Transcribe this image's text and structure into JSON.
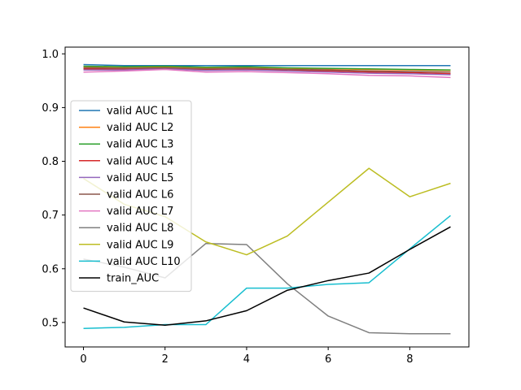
{
  "chart_data": {
    "type": "line",
    "title": "",
    "xlabel": "",
    "ylabel": "",
    "xlim": [
      -0.45,
      9.45
    ],
    "ylim": [
      0.4545,
      1.0125
    ],
    "x": [
      0,
      1,
      2,
      3,
      4,
      5,
      6,
      7,
      8,
      9
    ],
    "x_ticks": [
      0,
      2,
      4,
      6,
      8
    ],
    "y_ticks": [
      0.5,
      0.6,
      0.7,
      0.8,
      0.9,
      1.0
    ],
    "x_tick_labels": [
      "0",
      "2",
      "4",
      "6",
      "8"
    ],
    "y_tick_labels": [
      "0.5",
      "0.6",
      "0.7",
      "0.8",
      "0.9",
      "1.0"
    ],
    "grid": false,
    "legend_position": "center-left",
    "series": [
      {
        "name": "valid AUC L1",
        "color": "#1f77b4",
        "values": [
          0.98,
          0.978,
          0.978,
          0.978,
          0.978,
          0.978,
          0.978,
          0.978,
          0.978,
          0.978
        ]
      },
      {
        "name": "valid AUC L2",
        "color": "#ff7f0e",
        "values": [
          0.976,
          0.975,
          0.976,
          0.974,
          0.975,
          0.973,
          0.972,
          0.971,
          0.97,
          0.969
        ]
      },
      {
        "name": "valid AUC L3",
        "color": "#2ca02c",
        "values": [
          0.977,
          0.976,
          0.977,
          0.975,
          0.976,
          0.974,
          0.973,
          0.972,
          0.971,
          0.97
        ]
      },
      {
        "name": "valid AUC L4",
        "color": "#d62728",
        "values": [
          0.972,
          0.972,
          0.973,
          0.971,
          0.972,
          0.969,
          0.968,
          0.966,
          0.965,
          0.963
        ]
      },
      {
        "name": "valid AUC L5",
        "color": "#9467bd",
        "values": [
          0.97,
          0.97,
          0.972,
          0.969,
          0.97,
          0.968,
          0.966,
          0.964,
          0.963,
          0.961
        ]
      },
      {
        "name": "valid AUC L6",
        "color": "#8c564b",
        "values": [
          0.974,
          0.973,
          0.974,
          0.972,
          0.973,
          0.971,
          0.97,
          0.968,
          0.967,
          0.966
        ]
      },
      {
        "name": "valid AUC L7",
        "color": "#e377c2",
        "values": [
          0.966,
          0.968,
          0.971,
          0.966,
          0.967,
          0.965,
          0.963,
          0.96,
          0.959,
          0.956
        ]
      },
      {
        "name": "valid AUC L8",
        "color": "#7f7f7f",
        "values": [
          0.618,
          0.603,
          0.583,
          0.647,
          0.645,
          0.572,
          0.512,
          0.481,
          0.479,
          0.479
        ]
      },
      {
        "name": "valid AUC L9",
        "color": "#bcbd22",
        "values": [
          0.768,
          0.72,
          0.697,
          0.65,
          0.626,
          0.661,
          0.724,
          0.787,
          0.734,
          0.759
        ]
      },
      {
        "name": "valid AUC L10",
        "color": "#17becf",
        "values": [
          0.489,
          0.491,
          0.496,
          0.496,
          0.564,
          0.564,
          0.571,
          0.574,
          0.637,
          0.699
        ]
      },
      {
        "name": "train_AUC",
        "color": "#000000",
        "values": [
          0.527,
          0.501,
          0.495,
          0.503,
          0.522,
          0.56,
          0.578,
          0.592,
          0.636,
          0.678
        ]
      }
    ]
  }
}
